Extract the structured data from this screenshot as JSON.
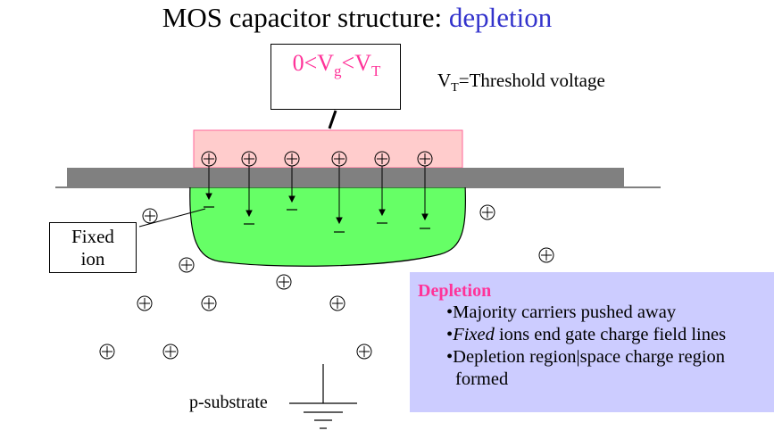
{
  "title": {
    "main": "MOS capacitor structure: ",
    "accent": "depletion"
  },
  "gate_condition": {
    "p1": "0<V",
    "s1": "g",
    "p2": "<V",
    "s2": "T"
  },
  "threshold_note": {
    "p1": "V",
    "sub": "T",
    "p2": "=Threshold voltage"
  },
  "fixed_ion_label": {
    "line1": "Fixed",
    "line2": "ion"
  },
  "substrate_label": "p-substrate",
  "info": {
    "heading": "Depletion",
    "b1": "•Majority carriers pushed away",
    "b2_bullet": "•",
    "b2_italic": "Fixed",
    "b2_rest": " ions end gate charge field lines",
    "b3_line1": "•Depletion region|space charge region",
    "b3_line2": "formed"
  },
  "colors": {
    "gate": "#ffcccc",
    "oxide": "#808080",
    "depletion": "#66ff66",
    "info_bg": "#ccccff",
    "accent_pink": "#ff3399",
    "accent_blue": "#3333cc"
  },
  "symbols": {
    "positive_charge": "circled-plus-icon",
    "negative_charge": "minus-icon",
    "ground": "ground-icon"
  }
}
